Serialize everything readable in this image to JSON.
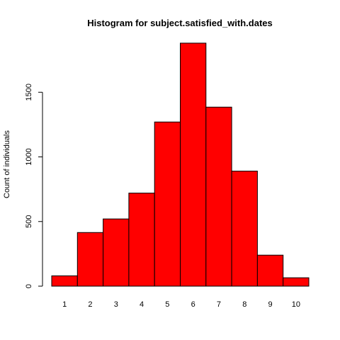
{
  "chart_data": {
    "type": "bar",
    "title": "Histogram for subject.satisfied_with.dates",
    "xlabel": "",
    "ylabel": "Count of individuals",
    "categories": [
      "1",
      "2",
      "3",
      "4",
      "5",
      "6",
      "7",
      "8",
      "9",
      "10"
    ],
    "values": [
      80,
      415,
      520,
      720,
      1270,
      1880,
      1385,
      890,
      240,
      65
    ],
    "yticks": [
      0,
      500,
      1000,
      1500
    ],
    "ylim": [
      0,
      1880
    ],
    "bar_color": "#ff0000",
    "grid": false
  }
}
